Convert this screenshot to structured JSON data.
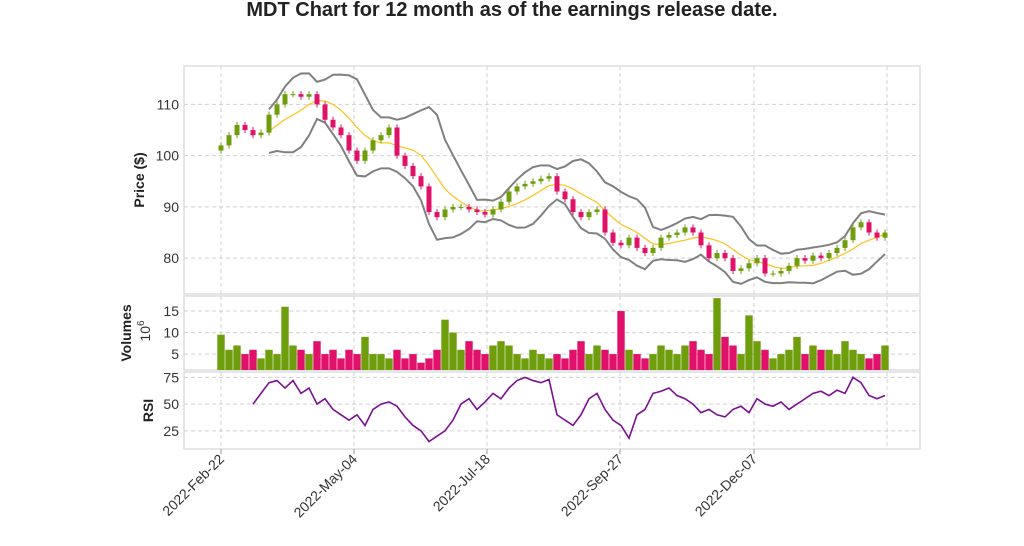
{
  "title": "MDT Chart for 12 month as of the earnings release date.",
  "colors": {
    "up": "#6e9e0b",
    "down": "#e0116a",
    "sma": "#ffc21a",
    "bands": "#808080",
    "rsi": "#7c0f94",
    "grid": "#d0d0d0"
  },
  "chart_data": {
    "type": "candlestick",
    "title": "MDT Chart for 12 month as of the earnings release date.",
    "x_tick_labels": [
      "2022-Feb-22",
      "2022-May-04",
      "2022-Jul-18",
      "2022-Sep-27",
      "2022-Dec-07"
    ],
    "price_panel": {
      "ylabel": "Price ($)",
      "yticks": [
        80,
        90,
        100,
        110
      ],
      "ylim": [
        73,
        117.5
      ],
      "close": [
        102,
        104,
        106,
        105,
        104,
        104.5,
        108,
        110,
        112,
        112,
        111.5,
        112,
        110,
        107,
        105.5,
        104,
        101,
        99,
        101,
        103,
        104,
        105.5,
        100,
        98,
        96,
        94,
        89,
        88,
        89.5,
        90,
        90,
        89.5,
        89,
        88.5,
        89.5,
        91,
        93,
        94,
        94.5,
        95,
        95.5,
        96,
        93,
        91.5,
        89,
        88,
        89,
        89.5,
        85,
        83,
        82.5,
        84,
        82,
        81,
        82,
        84,
        84.5,
        85,
        86,
        85,
        82.5,
        80,
        81,
        80,
        77.5,
        78,
        79,
        80,
        77,
        77,
        77.5,
        78.5,
        80,
        79.5,
        80.5,
        80,
        81,
        82,
        83.5,
        86,
        87,
        85,
        84,
        85
      ],
      "overlays": [
        "moving average",
        "bollinger bands"
      ]
    },
    "volume_panel": {
      "ylabel": "Volumes",
      "unit": "10^6",
      "yticks": [
        5,
        10,
        15
      ],
      "ylim": [
        1.3,
        18.5
      ],
      "values": [
        9.5,
        6,
        7,
        5,
        6,
        4,
        6,
        5,
        16,
        7,
        6,
        5,
        8,
        5,
        6,
        4,
        6,
        5,
        9,
        5,
        5,
        4,
        6,
        4,
        5,
        3,
        4,
        6,
        13,
        10,
        6,
        8,
        6,
        5,
        7,
        8,
        7,
        5,
        4,
        6,
        5,
        4,
        5,
        4,
        6,
        8,
        5,
        7,
        6,
        5,
        15,
        6,
        5,
        4,
        5,
        7,
        6,
        5,
        7,
        8,
        6,
        5,
        18,
        9,
        7,
        5,
        14,
        8,
        6,
        4,
        5,
        6,
        9,
        5,
        7,
        6,
        6,
        5,
        8,
        6,
        5,
        4,
        5,
        7
      ]
    },
    "rsi_panel": {
      "ylabel": "RSI",
      "yticks": [
        25,
        50,
        75
      ],
      "ylim": [
        8,
        80
      ],
      "values": [
        null,
        null,
        null,
        null,
        50,
        60,
        70,
        72,
        65,
        72,
        60,
        65,
        50,
        55,
        45,
        40,
        35,
        40,
        30,
        45,
        50,
        52,
        48,
        38,
        30,
        25,
        15,
        20,
        25,
        35,
        50,
        55,
        45,
        52,
        60,
        55,
        65,
        72,
        75,
        72,
        70,
        73,
        40,
        35,
        30,
        40,
        55,
        60,
        45,
        35,
        30,
        18,
        40,
        45,
        60,
        62,
        65,
        58,
        55,
        50,
        42,
        45,
        40,
        38,
        45,
        48,
        42,
        55,
        50,
        48,
        52,
        45,
        50,
        55,
        60,
        62,
        58,
        63,
        60,
        75,
        70,
        58,
        55,
        58
      ]
    },
    "grid": true
  }
}
